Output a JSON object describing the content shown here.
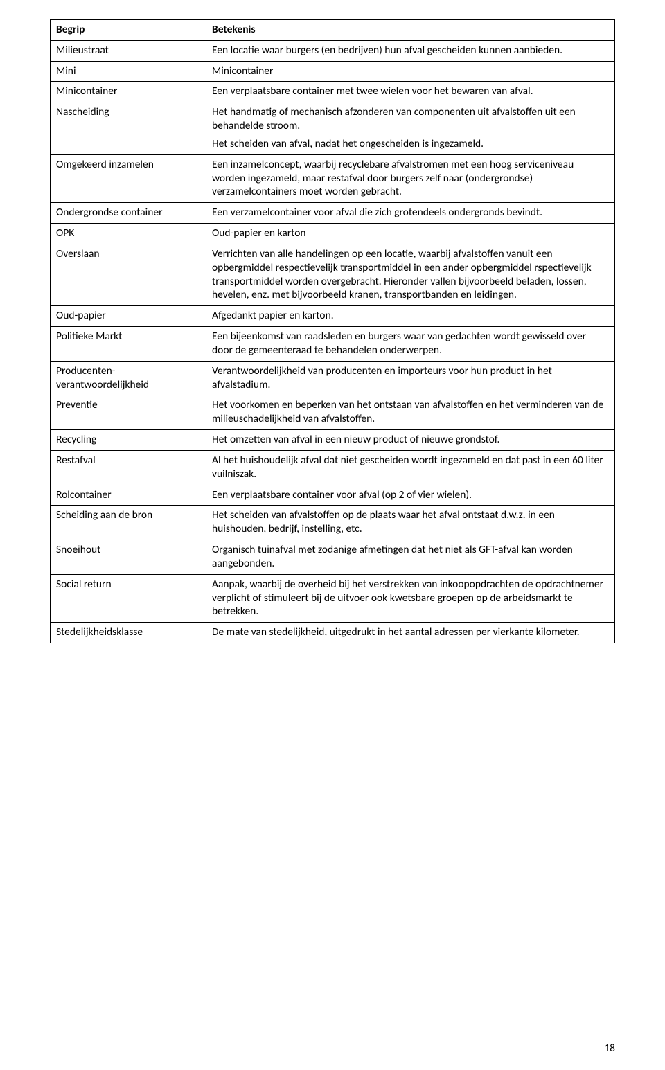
{
  "page_number": "18",
  "header": {
    "term": "Begrip",
    "definition": "Betekenis"
  },
  "rows": [
    {
      "term": "Milieustraat",
      "def": [
        "Een locatie waar burgers (en bedrijven) hun afval gescheiden kunnen aanbieden."
      ]
    },
    {
      "term": "Mini",
      "def": [
        "Minicontainer"
      ]
    },
    {
      "term": "Minicontainer",
      "def": [
        "Een verplaatsbare container met twee wielen voor het bewaren van afval."
      ]
    },
    {
      "term": "Nascheiding",
      "def": [
        "Het handmatig of mechanisch afzonderen van componenten uit afvalstoffen uit een behandelde stroom.",
        "Het scheiden van afval, nadat het ongescheiden is ingezameld."
      ]
    },
    {
      "term": "Omgekeerd inzamelen",
      "def": [
        "Een inzamelconcept, waarbij recyclebare afvalstromen met een hoog serviceniveau worden ingezameld, maar restafval door burgers zelf naar (ondergrondse) verzamelcontainers moet worden gebracht."
      ]
    },
    {
      "term": "Ondergrondse container",
      "def": [
        "Een verzamelcontainer voor afval die zich grotendeels ondergronds bevindt."
      ]
    },
    {
      "term": "OPK",
      "def": [
        "Oud-papier en karton"
      ]
    },
    {
      "term": "Overslaan",
      "def": [
        "Verrichten van alle handelingen op een locatie, waarbij afvalstoffen vanuit een opbergmiddel respectievelijk transportmiddel in een ander opbergmiddel rspectievelijk transportmiddel worden overgebracht. Hieronder vallen bijvoorbeeld beladen, lossen, hevelen, enz. met bijvoorbeeld kranen, transportbanden en leidingen."
      ]
    },
    {
      "term": "Oud-papier",
      "def": [
        "Afgedankt papier en karton."
      ]
    },
    {
      "term": "Politieke Markt",
      "def": [
        "Een bijeenkomst van raadsleden en burgers waar van gedachten wordt gewisseld over door de gemeenteraad te behandelen onderwerpen."
      ]
    },
    {
      "term": "Producenten-verantwoordelijkheid",
      "def": [
        "Verantwoordelijkheid van producenten en importeurs voor hun product in het afvalstadium."
      ]
    },
    {
      "term": "Preventie",
      "def": [
        "Het voorkomen en beperken van het ontstaan van afvalstoffen en het verminderen van de milieuschadelijkheid van afvalstoffen."
      ]
    },
    {
      "term": "Recycling",
      "def": [
        "Het omzetten van afval in een nieuw product of nieuwe grondstof."
      ]
    },
    {
      "term": "Restafval",
      "def": [
        "Al het huishoudelijk afval dat niet gescheiden wordt ingezameld en dat past in een 60 liter vuilniszak."
      ]
    },
    {
      "term": "Rolcontainer",
      "def": [
        "Een verplaatsbare container voor afval (op 2 of vier wielen)."
      ]
    },
    {
      "term": "Scheiding aan de bron",
      "def": [
        "Het scheiden van afvalstoffen op de plaats waar het afval ontstaat d.w.z. in een huishouden, bedrijf, instelling, etc."
      ]
    },
    {
      "term": "Snoeihout",
      "def": [
        "Organisch tuinafval met zodanige afmetingen dat het niet als GFT-afval kan worden aangebonden."
      ]
    },
    {
      "term": "Social return",
      "def": [
        "Aanpak, waarbij de overheid bij het verstrekken van inkoopopdrachten de opdrachtnemer verplicht of stimuleert bij de uitvoer ook kwetsbare groepen op de arbeidsmarkt te betrekken."
      ]
    },
    {
      "term": "Stedelijkheidsklasse",
      "def": [
        "De mate van stedelijkheid, uitgedrukt in het aantal adressen per vierkante kilometer."
      ]
    }
  ]
}
